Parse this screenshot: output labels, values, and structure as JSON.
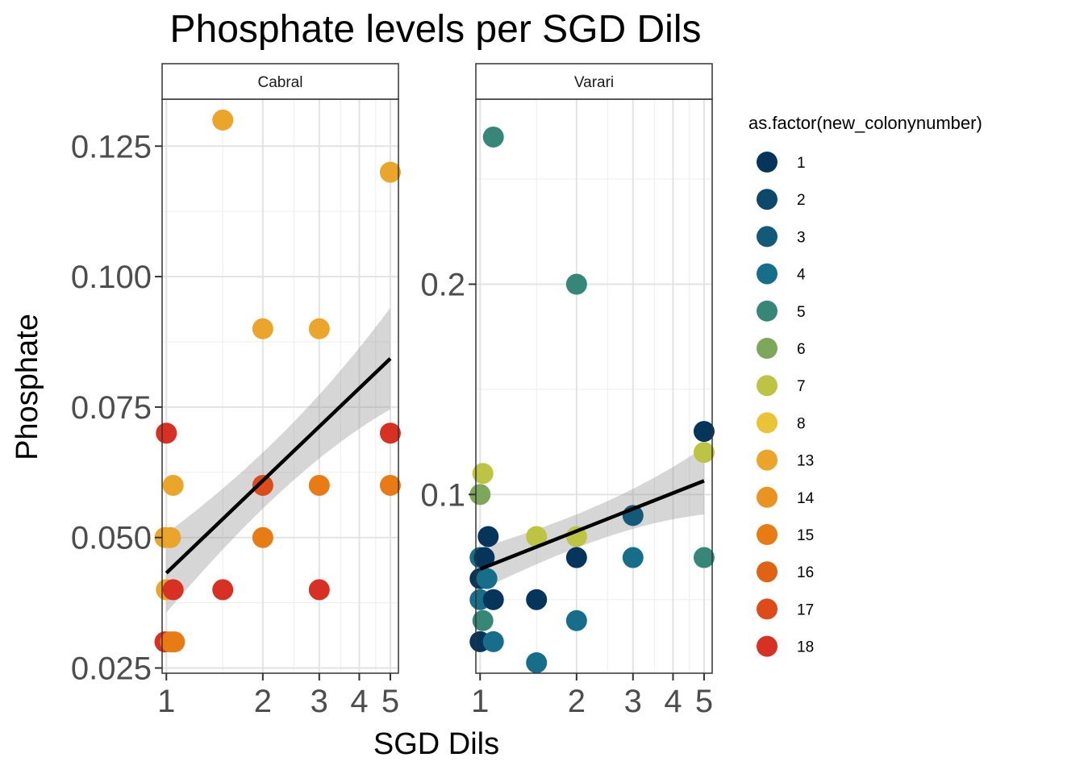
{
  "chart_data": {
    "type": "scatter",
    "title": "Phosphate levels per SGD Dils",
    "xlabel": "SGD Dils",
    "ylabel": "Phosphate",
    "x_scale": "log",
    "x_ticks": [
      1,
      2,
      3,
      4,
      5
    ],
    "grid": true,
    "legend": {
      "title": "as.factor(new_colonynumber)",
      "position": "right",
      "items": [
        {
          "label": "1",
          "color": "#05355b"
        },
        {
          "label": "2",
          "color": "#0b4869"
        },
        {
          "label": "3",
          "color": "#135a78"
        },
        {
          "label": "4",
          "color": "#166e8b"
        },
        {
          "label": "5",
          "color": "#378779"
        },
        {
          "label": "6",
          "color": "#7da75a"
        },
        {
          "label": "7",
          "color": "#bdc342"
        },
        {
          "label": "8",
          "color": "#eac336"
        },
        {
          "label": "13",
          "color": "#eaa52a"
        },
        {
          "label": "14",
          "color": "#eb9322"
        },
        {
          "label": "15",
          "color": "#e97b14"
        },
        {
          "label": "16",
          "color": "#e06314"
        },
        {
          "label": "17",
          "color": "#dc4b18"
        },
        {
          "label": "18",
          "color": "#d83022"
        }
      ]
    },
    "panels": [
      {
        "strip": "Cabral",
        "xlim": [
          0.97,
          5.3
        ],
        "ylim": [
          0.024,
          0.134
        ],
        "y_ticks": [
          0.025,
          0.05,
          0.075,
          0.1,
          0.125
        ],
        "y_tick_labels": [
          "0.025",
          "0.050",
          "0.075",
          "0.100",
          "0.125"
        ],
        "y_minor": [
          0.0375,
          0.0625,
          0.0875,
          0.1125
        ],
        "trend": {
          "x": [
            1,
            5
          ],
          "y": [
            0.0432,
            0.0843
          ],
          "ci_lo": [
            0.0375,
            0.077
          ],
          "ci_hi": [
            0.049,
            0.0915
          ]
        },
        "points": [
          {
            "x": 1.5,
            "y": 0.13,
            "g": "13"
          },
          {
            "x": 5,
            "y": 0.12,
            "g": "13"
          },
          {
            "x": 2,
            "y": 0.09,
            "g": "13"
          },
          {
            "x": 3,
            "y": 0.09,
            "g": "13"
          },
          {
            "x": 1,
            "y": 0.07,
            "g": "18"
          },
          {
            "x": 5,
            "y": 0.07,
            "g": "18"
          },
          {
            "x": 1.05,
            "y": 0.06,
            "g": "13"
          },
          {
            "x": 2,
            "y": 0.06,
            "g": "17"
          },
          {
            "x": 3,
            "y": 0.06,
            "g": "15"
          },
          {
            "x": 5,
            "y": 0.06,
            "g": "15"
          },
          {
            "x": 0.99,
            "y": 0.05,
            "g": "13"
          },
          {
            "x": 1.03,
            "y": 0.05,
            "g": "13"
          },
          {
            "x": 2,
            "y": 0.05,
            "g": "15"
          },
          {
            "x": 1,
            "y": 0.04,
            "g": "13"
          },
          {
            "x": 1.05,
            "y": 0.04,
            "g": "18"
          },
          {
            "x": 1.5,
            "y": 0.04,
            "g": "18"
          },
          {
            "x": 3,
            "y": 0.04,
            "g": "18"
          },
          {
            "x": 0.99,
            "y": 0.03,
            "g": "18"
          },
          {
            "x": 1.03,
            "y": 0.03,
            "g": "15"
          },
          {
            "x": 1.06,
            "y": 0.03,
            "g": "15"
          }
        ]
      },
      {
        "strip": "Varari",
        "xlim": [
          0.97,
          5.3
        ],
        "ylim": [
          0.015,
          0.288
        ],
        "y_ticks": [
          0.1,
          0.2
        ],
        "y_tick_labels": [
          "0.1",
          "0.2"
        ],
        "y_minor": [
          0.05,
          0.15,
          0.25
        ],
        "trend": {
          "x": [
            1,
            5
          ],
          "y": [
            0.0645,
            0.1065
          ],
          "ci_lo": [
            0.057,
            0.0945
          ],
          "ci_hi": [
            0.072,
            0.12
          ]
        },
        "points": [
          {
            "x": 1.1,
            "y": 0.27,
            "g": "5"
          },
          {
            "x": 2,
            "y": 0.2,
            "g": "5"
          },
          {
            "x": 5,
            "y": 0.13,
            "g": "1"
          },
          {
            "x": 5,
            "y": 0.12,
            "g": "7"
          },
          {
            "x": 1.02,
            "y": 0.11,
            "g": "7"
          },
          {
            "x": 1,
            "y": 0.1,
            "g": "6"
          },
          {
            "x": 3,
            "y": 0.09,
            "g": "3"
          },
          {
            "x": 1.5,
            "y": 0.08,
            "g": "7"
          },
          {
            "x": 2,
            "y": 0.08,
            "g": "7"
          },
          {
            "x": 1.06,
            "y": 0.08,
            "g": "1"
          },
          {
            "x": 1,
            "y": 0.07,
            "g": "4"
          },
          {
            "x": 1.03,
            "y": 0.07,
            "g": "1"
          },
          {
            "x": 2,
            "y": 0.07,
            "g": "1"
          },
          {
            "x": 3,
            "y": 0.07,
            "g": "4"
          },
          {
            "x": 5,
            "y": 0.07,
            "g": "5"
          },
          {
            "x": 1,
            "y": 0.06,
            "g": "1"
          },
          {
            "x": 1.05,
            "y": 0.06,
            "g": "4"
          },
          {
            "x": 1,
            "y": 0.05,
            "g": "4"
          },
          {
            "x": 1.1,
            "y": 0.05,
            "g": "1"
          },
          {
            "x": 1.5,
            "y": 0.05,
            "g": "1"
          },
          {
            "x": 1.02,
            "y": 0.04,
            "g": "5"
          },
          {
            "x": 2,
            "y": 0.04,
            "g": "4"
          },
          {
            "x": 1,
            "y": 0.03,
            "g": "1"
          },
          {
            "x": 1.1,
            "y": 0.03,
            "g": "4"
          },
          {
            "x": 1.5,
            "y": 0.02,
            "g": "4"
          }
        ]
      }
    ]
  }
}
